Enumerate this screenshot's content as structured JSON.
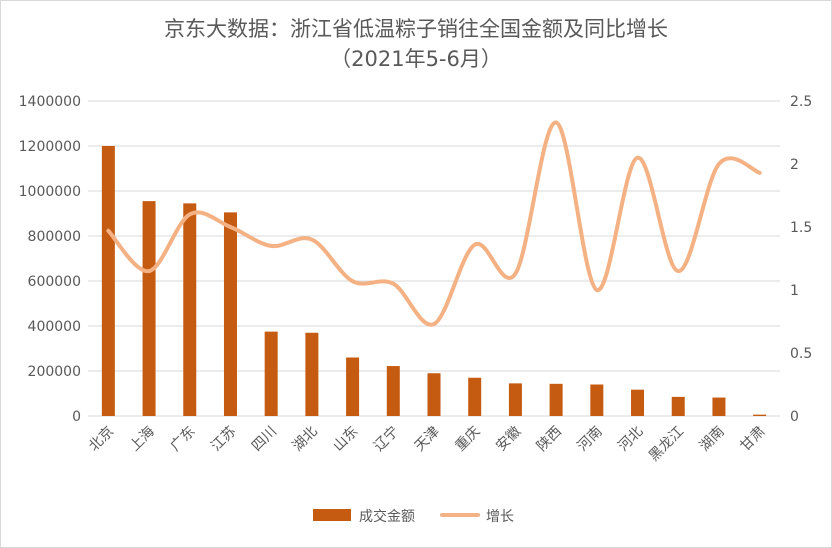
{
  "chart_data": {
    "type": "bar",
    "title": "京东大数据：浙江省低温粽子销往全国金额及同比增长",
    "subtitle": "（2021年5-6月）",
    "categories": [
      "北京",
      "上海",
      "广东",
      "江苏",
      "四川",
      "湖北",
      "山东",
      "辽宁",
      "天津",
      "重庆",
      "安徽",
      "陕西",
      "河南",
      "河北",
      "黑龙江",
      "湖南",
      "甘肃"
    ],
    "series": [
      {
        "name": "成交金额",
        "type": "bar",
        "axis": "left",
        "color": "#c55a11",
        "values": [
          1200000,
          955000,
          945000,
          905000,
          375000,
          370000,
          260000,
          222000,
          190000,
          170000,
          145000,
          143000,
          140000,
          117000,
          85000,
          82000,
          6000
        ]
      },
      {
        "name": "增长",
        "type": "line",
        "axis": "right",
        "color": "#f4b183",
        "values": [
          1.47,
          1.15,
          1.6,
          1.5,
          1.35,
          1.4,
          1.07,
          1.05,
          0.73,
          1.36,
          1.13,
          2.33,
          1.0,
          2.05,
          1.15,
          2.0,
          1.93
        ]
      }
    ],
    "y_left": {
      "min": 0,
      "max": 1400000,
      "ticks": [
        "0",
        "200000",
        "400000",
        "600000",
        "800000",
        "1000000",
        "1200000",
        "1400000"
      ]
    },
    "y_right": {
      "min": 0,
      "max": 2.5,
      "ticks": [
        "0",
        "0.5",
        "1",
        "1.5",
        "2",
        "2.5"
      ]
    },
    "grid": true,
    "legend": "bottom"
  }
}
